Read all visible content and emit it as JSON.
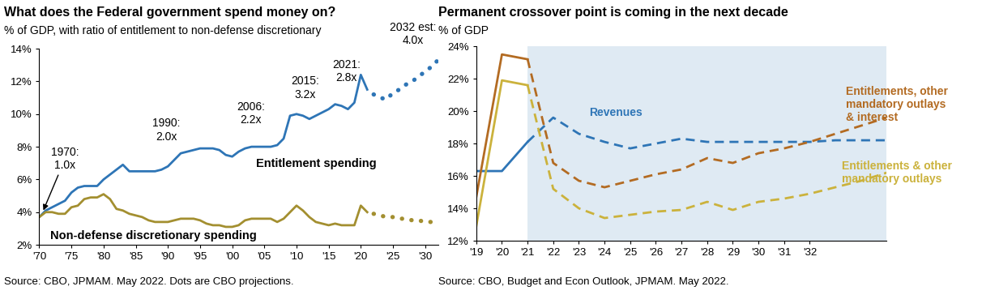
{
  "chart_data": [
    {
      "type": "line",
      "title": "What does the Federal government spend money on?",
      "subtitle": "% of GDP, with ratio of entitlement to non-defense discretionary",
      "note": "Source: CBO, JPMAM. May 2022. Dots are CBO projections.",
      "annotations": [
        "1970:\n1.0x",
        "1990:\n2.0x",
        "2006:\n2.2x",
        "2015:\n3.2x",
        "2021:\n2.8x",
        "2032 est:\n4.0x"
      ],
      "x": [
        1970,
        1971,
        1972,
        1973,
        1974,
        1975,
        1976,
        1977,
        1978,
        1979,
        1980,
        1981,
        1982,
        1983,
        1984,
        1985,
        1986,
        1987,
        1988,
        1989,
        1990,
        1991,
        1992,
        1993,
        1994,
        1995,
        1996,
        1997,
        1998,
        1999,
        2000,
        2001,
        2002,
        2003,
        2004,
        2005,
        2006,
        2007,
        2008,
        2009,
        2010,
        2011,
        2012,
        2013,
        2014,
        2015,
        2016,
        2017,
        2018,
        2019,
        2020,
        2021,
        2022,
        2023,
        2024,
        2025,
        2026,
        2027,
        2028,
        2029,
        2030,
        2031,
        2032
      ],
      "series": [
        {
          "name": "Entitlement spending",
          "color": "#2e75b6",
          "line_style": "solid",
          "values": [
            3.7,
            4.1,
            4.3,
            4.5,
            4.7,
            5.2,
            5.5,
            5.6,
            5.6,
            5.6,
            6.0,
            6.3,
            6.6,
            6.9,
            6.5,
            6.5,
            6.5,
            6.5,
            6.5,
            6.6,
            6.8,
            7.2,
            7.6,
            7.7,
            7.8,
            7.9,
            7.9,
            7.9,
            7.8,
            7.5,
            7.4,
            7.7,
            7.9,
            8.0,
            8.0,
            8.0,
            8.0,
            8.1,
            8.5,
            9.9,
            10.0,
            9.9,
            9.7,
            9.9,
            10.1,
            10.3,
            10.6,
            10.5,
            10.3,
            10.7,
            12.4,
            11.5,
            null,
            null,
            null,
            null,
            null,
            null,
            null,
            null,
            null,
            null,
            null
          ]
        },
        {
          "color": "#2e75b6",
          "line_style": "dotted",
          "values": [
            null,
            null,
            null,
            null,
            null,
            null,
            null,
            null,
            null,
            null,
            null,
            null,
            null,
            null,
            null,
            null,
            null,
            null,
            null,
            null,
            null,
            null,
            null,
            null,
            null,
            null,
            null,
            null,
            null,
            null,
            null,
            null,
            null,
            null,
            null,
            null,
            null,
            null,
            null,
            null,
            null,
            null,
            null,
            null,
            null,
            null,
            null,
            null,
            null,
            null,
            null,
            null,
            11.2,
            11.0,
            10.9,
            11.3,
            11.5,
            11.8,
            12.0,
            12.3,
            12.6,
            12.9,
            13.3
          ]
        },
        {
          "name": "Non-defense discretionary spending",
          "color": "#a38f30",
          "line_style": "solid",
          "values": [
            3.7,
            4.0,
            4.0,
            3.9,
            3.9,
            4.3,
            4.4,
            4.8,
            4.9,
            4.9,
            5.1,
            4.8,
            4.2,
            4.1,
            3.9,
            3.8,
            3.7,
            3.5,
            3.4,
            3.4,
            3.4,
            3.5,
            3.6,
            3.6,
            3.6,
            3.5,
            3.3,
            3.2,
            3.2,
            3.1,
            3.1,
            3.2,
            3.5,
            3.6,
            3.6,
            3.6,
            3.6,
            3.4,
            3.6,
            4.0,
            4.4,
            4.1,
            3.7,
            3.4,
            3.3,
            3.2,
            3.3,
            3.2,
            3.2,
            3.2,
            4.4,
            4.0,
            null,
            null,
            null,
            null,
            null,
            null,
            null,
            null,
            null,
            null,
            null
          ]
        },
        {
          "color": "#a38f30",
          "line_style": "dotted",
          "values": [
            null,
            null,
            null,
            null,
            null,
            null,
            null,
            null,
            null,
            null,
            null,
            null,
            null,
            null,
            null,
            null,
            null,
            null,
            null,
            null,
            null,
            null,
            null,
            null,
            null,
            null,
            null,
            null,
            null,
            null,
            null,
            null,
            null,
            null,
            null,
            null,
            null,
            null,
            null,
            null,
            null,
            null,
            null,
            null,
            null,
            null,
            null,
            null,
            null,
            null,
            null,
            null,
            3.9,
            3.8,
            3.7,
            3.7,
            3.6,
            3.6,
            3.5,
            3.5,
            3.4,
            3.4,
            3.3
          ]
        }
      ],
      "xlim": [
        1970,
        2032
      ],
      "xticks": [
        {
          "value": 1970,
          "label": "'70"
        },
        {
          "value": 1975,
          "label": "'75"
        },
        {
          "value": 1980,
          "label": "'80"
        },
        {
          "value": 1985,
          "label": "'85"
        },
        {
          "value": 1990,
          "label": "'90"
        },
        {
          "value": 1995,
          "label": "'95"
        },
        {
          "value": 2000,
          "label": "'00"
        },
        {
          "value": 2005,
          "label": "'05"
        },
        {
          "value": 2010,
          "label": "'10"
        },
        {
          "value": 2015,
          "label": "'15"
        },
        {
          "value": 2020,
          "label": "'20"
        },
        {
          "value": 2025,
          "label": "'25"
        },
        {
          "value": 2030,
          "label": "'30"
        }
      ],
      "ylim": [
        2,
        14
      ],
      "yticks": [
        {
          "value": 2,
          "label": "2%"
        },
        {
          "value": 4,
          "label": "4%"
        },
        {
          "value": 6,
          "label": "6%"
        },
        {
          "value": 8,
          "label": "8%"
        },
        {
          "value": 10,
          "label": "10%"
        },
        {
          "value": 12,
          "label": "12%"
        },
        {
          "value": 14,
          "label": "14%"
        }
      ],
      "grid": false
    },
    {
      "type": "line",
      "title": "Permanent crossover point is coming in the next decade",
      "subtitle": "% of GDP",
      "note": "Source: CBO, Budget and Econ Outlook, JPMAM. May 2022.",
      "x": [
        2019,
        2020,
        2021,
        2022,
        2023,
        2024,
        2025,
        2026,
        2027,
        2028,
        2029,
        2030,
        2031,
        2032,
        2033,
        2034,
        2035
      ],
      "series": [
        {
          "name": "Revenues",
          "color": "#2e75b6",
          "line_style": "solid",
          "values": [
            16.3,
            16.3,
            18.1,
            null,
            null,
            null,
            null,
            null,
            null,
            null,
            null,
            null,
            null,
            null,
            null,
            null,
            null
          ]
        },
        {
          "color": "#2e75b6",
          "line_style": "dashed",
          "values": [
            null,
            null,
            18.1,
            19.6,
            18.6,
            18.1,
            17.7,
            18.0,
            18.3,
            18.1,
            18.1,
            18.1,
            18.1,
            18.1,
            18.2,
            18.2,
            18.2
          ]
        },
        {
          "name": "Entitlements, other\nmandatory outlays\n& interest",
          "color": "#b36b22",
          "line_style": "solid",
          "values": [
            14.7,
            23.5,
            23.2,
            null,
            null,
            null,
            null,
            null,
            null,
            null,
            null,
            null,
            null,
            null,
            null,
            null,
            null
          ]
        },
        {
          "color": "#b36b22",
          "line_style": "dashed",
          "values": [
            null,
            null,
            23.2,
            16.8,
            15.7,
            15.3,
            15.7,
            16.1,
            16.4,
            17.1,
            16.8,
            17.4,
            17.7,
            18.1,
            18.6,
            19.1,
            19.6
          ]
        },
        {
          "name": "Entitlements & other\nmandatory outlays",
          "color": "#cbb23c",
          "line_style": "solid",
          "values": [
            12.9,
            21.9,
            21.6,
            null,
            null,
            null,
            null,
            null,
            null,
            null,
            null,
            null,
            null,
            null,
            null,
            null,
            null
          ]
        },
        {
          "color": "#cbb23c",
          "line_style": "dashed",
          "values": [
            null,
            null,
            21.6,
            15.2,
            14.0,
            13.4,
            13.6,
            13.8,
            13.9,
            14.4,
            13.9,
            14.4,
            14.6,
            14.9,
            15.3,
            15.7,
            16.2
          ]
        }
      ],
      "xlim": [
        2019,
        2035
      ],
      "xticks": [
        {
          "value": 2019,
          "label": "'19"
        },
        {
          "value": 2020,
          "label": "'20"
        },
        {
          "value": 2021,
          "label": "'21"
        },
        {
          "value": 2022,
          "label": "'22"
        },
        {
          "value": 2023,
          "label": "'23"
        },
        {
          "value": 2024,
          "label": "'24"
        },
        {
          "value": 2025,
          "label": "'25"
        },
        {
          "value": 2026,
          "label": "'26"
        },
        {
          "value": 2027,
          "label": "'27"
        },
        {
          "value": 2028,
          "label": "'28"
        },
        {
          "value": 2029,
          "label": "'29"
        },
        {
          "value": 2030,
          "label": "'30"
        },
        {
          "value": 2031,
          "label": "'31"
        },
        {
          "value": 2032,
          "label": "'32"
        }
      ],
      "ylim": [
        12,
        24
      ],
      "yticks": [
        {
          "value": 12,
          "label": "12%"
        },
        {
          "value": 14,
          "label": "14%"
        },
        {
          "value": 16,
          "label": "16%"
        },
        {
          "value": 18,
          "label": "18%"
        },
        {
          "value": 20,
          "label": "20%"
        },
        {
          "value": 22,
          "label": "22%"
        },
        {
          "value": 24,
          "label": "24%"
        }
      ],
      "grid": false
    }
  ]
}
